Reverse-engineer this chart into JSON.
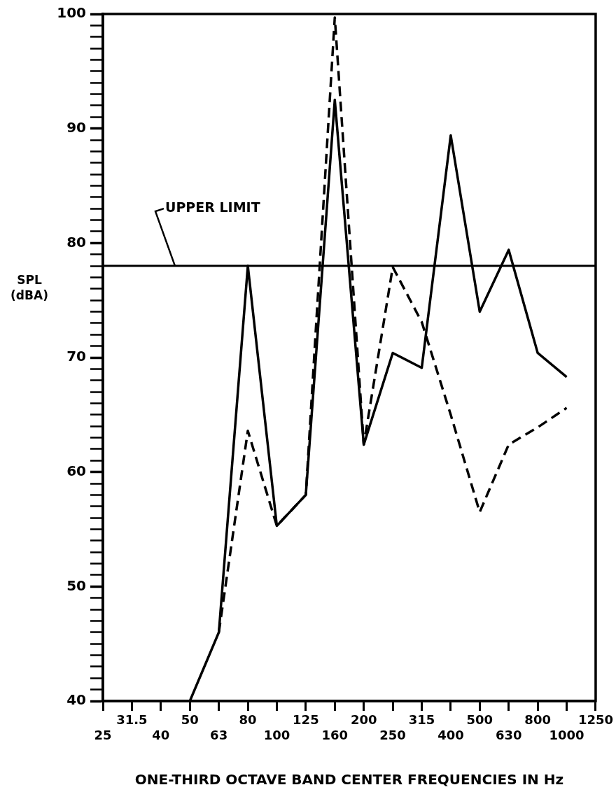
{
  "chart_data": {
    "type": "line",
    "xlabel": "ONE-THIRD OCTAVE BAND CENTER FREQUENCIES IN Hz",
    "ylabel": "SPL (dBA)",
    "categories": [
      "25",
      "31.5",
      "40",
      "50",
      "63",
      "80",
      "100",
      "125",
      "160",
      "200",
      "250",
      "315",
      "400",
      "500",
      "630",
      "800",
      "1000",
      "1250"
    ],
    "series": [
      {
        "color": "#000000",
        "line_style": "solid",
        "values": [
          null,
          null,
          null,
          40,
          46,
          78,
          55.3,
          58,
          92.5,
          62.4,
          70.4,
          69.1,
          89.4,
          74,
          79.4,
          70.4,
          68.3,
          null
        ]
      },
      {
        "color": "#000000",
        "line_style": "dashed",
        "values": [
          null,
          null,
          null,
          null,
          46,
          63.6,
          55.3,
          58,
          99.7,
          62.4,
          77.9,
          73.1,
          65,
          56.5,
          62.4,
          63.9,
          65.6,
          null
        ]
      }
    ],
    "ylim": [
      40,
      100
    ],
    "yticks": [
      40,
      {
        "value": 41,
        "label": null
      },
      {
        "value": 42,
        "label": null
      },
      {
        "value": 43,
        "label": null
      },
      {
        "value": 44,
        "label": null
      },
      {
        "value": 45,
        "label": null
      },
      {
        "value": 46,
        "label": null
      },
      {
        "value": 47,
        "label": null
      },
      {
        "value": 48,
        "label": null
      },
      {
        "value": 49,
        "label": null
      },
      50,
      {
        "value": 51,
        "label": null
      },
      {
        "value": 52,
        "label": null
      },
      {
        "value": 53,
        "label": null
      },
      {
        "value": 54,
        "label": null
      },
      {
        "value": 55,
        "label": null
      },
      {
        "value": 56,
        "label": null
      },
      {
        "value": 57,
        "label": null
      },
      {
        "value": 58,
        "label": null
      },
      {
        "value": 59,
        "label": null
      },
      60,
      {
        "value": 61,
        "label": null
      },
      {
        "value": 62,
        "label": null
      },
      {
        "value": 63,
        "label": null
      },
      {
        "value": 64,
        "label": null
      },
      {
        "value": 65,
        "label": null
      },
      {
        "value": 66,
        "label": null
      },
      {
        "value": 67,
        "label": null
      },
      {
        "value": 68,
        "label": null
      },
      {
        "value": 69,
        "label": null
      },
      70,
      {
        "value": 71,
        "label": null
      },
      {
        "value": 72,
        "label": null
      },
      {
        "value": 73,
        "label": null
      },
      {
        "value": 74,
        "label": null
      },
      {
        "value": 75,
        "label": null
      },
      {
        "value": 76,
        "label": null
      },
      {
        "value": 77,
        "label": null
      },
      {
        "value": 78,
        "label": null
      },
      {
        "value": 79,
        "label": null
      },
      80,
      {
        "value": 81,
        "label": null
      },
      {
        "value": 82,
        "label": null
      },
      {
        "value": 83,
        "label": null
      },
      {
        "value": 84,
        "label": null
      },
      {
        "value": 85,
        "label": null
      },
      {
        "value": 86,
        "label": null
      },
      {
        "value": 87,
        "label": null
      },
      {
        "value": 88,
        "label": null
      },
      {
        "value": 89,
        "label": null
      },
      90,
      {
        "value": 91,
        "label": null
      },
      {
        "value": 92,
        "label": null
      },
      {
        "value": 93,
        "label": null
      },
      {
        "value": 94,
        "label": null
      },
      {
        "value": 95,
        "label": null
      },
      {
        "value": 96,
        "label": null
      },
      {
        "value": 97,
        "label": null
      },
      {
        "value": 98,
        "label": null
      },
      {
        "value": 99,
        "label": null
      },
      100
    ],
    "ref_lines": [
      {
        "axis": "y",
        "value": 78,
        "label": "UPPER LIMIT",
        "color": "#000000"
      }
    ],
    "grid": false,
    "legend": false,
    "marker": "none"
  }
}
